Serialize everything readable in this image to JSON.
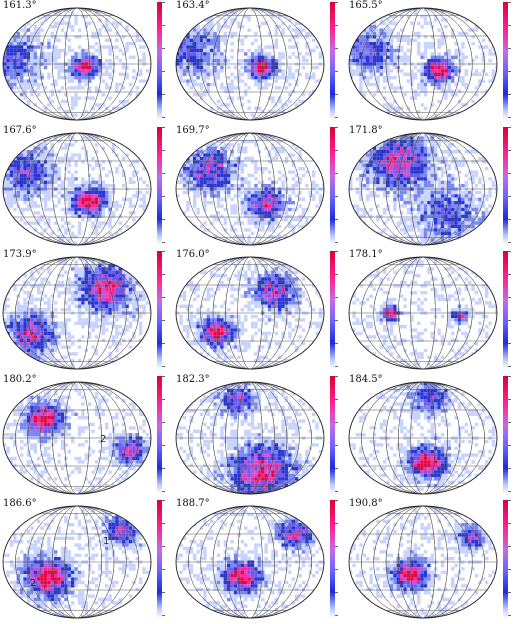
{
  "panels": [
    {
      "label": "161.3°",
      "blobs": [
        {
          "lon": 20,
          "lat": -5,
          "r": 0.13,
          "peak": 1.0
        },
        {
          "lon": -160,
          "lat": 10,
          "r": 0.3,
          "peak": 0.5
        }
      ]
    },
    {
      "label": "163.4°",
      "blobs": [
        {
          "lon": 30,
          "lat": -5,
          "r": 0.13,
          "peak": 1.0
        },
        {
          "lon": -140,
          "lat": 20,
          "r": 0.28,
          "peak": 0.5
        }
      ]
    },
    {
      "label": "165.5°",
      "blobs": [
        {
          "lon": 40,
          "lat": -10,
          "r": 0.14,
          "peak": 1.0
        },
        {
          "lon": -130,
          "lat": 20,
          "r": 0.26,
          "peak": 0.5
        }
      ]
    },
    {
      "label": "167.6°",
      "blobs": [
        {
          "lon": 30,
          "lat": -20,
          "r": 0.16,
          "peak": 1.0
        },
        {
          "lon": -120,
          "lat": 25,
          "r": 0.26,
          "peak": 0.6
        }
      ]
    },
    {
      "label": "169.7°",
      "blobs": [
        {
          "lon": 40,
          "lat": -25,
          "r": 0.18,
          "peak": 0.8
        },
        {
          "lon": -100,
          "lat": 30,
          "r": 0.24,
          "peak": 0.7
        }
      ]
    },
    {
      "label": "171.8°",
      "blobs": [
        {
          "lon": -60,
          "lat": 45,
          "r": 0.3,
          "peak": 0.8
        },
        {
          "lon": 60,
          "lat": -40,
          "r": 0.3,
          "peak": 0.5
        }
      ]
    },
    {
      "label": "173.9°",
      "blobs": [
        {
          "lon": 70,
          "lat": 40,
          "r": 0.25,
          "peak": 0.9
        },
        {
          "lon": -110,
          "lat": -35,
          "r": 0.22,
          "peak": 0.8
        }
      ]
    },
    {
      "label": "176.0°",
      "blobs": [
        {
          "lon": 60,
          "lat": 35,
          "r": 0.2,
          "peak": 0.8
        },
        {
          "lon": -80,
          "lat": -30,
          "r": 0.16,
          "peak": 1.0
        }
      ]
    },
    {
      "label": "178.1°",
      "blobs": [
        {
          "lon": -80,
          "lat": 0,
          "r": 0.08,
          "peak": 1.0
        },
        {
          "lon": 90,
          "lat": -5,
          "r": 0.07,
          "peak": 0.9
        }
      ]
    },
    {
      "label": "180.2°",
      "blobs": [
        {
          "lon": -80,
          "lat": 30,
          "r": 0.18,
          "peak": 1.0
        },
        {
          "lon": 130,
          "lat": -20,
          "r": 0.15,
          "peak": 0.8
        }
      ]
    },
    {
      "label": "182.3°",
      "blobs": [
        {
          "lon": 30,
          "lat": -55,
          "r": 0.3,
          "peak": 0.9
        },
        {
          "lon": -30,
          "lat": 60,
          "r": 0.16,
          "peak": 0.7
        }
      ]
    },
    {
      "label": "184.5°",
      "blobs": [
        {
          "lon": 10,
          "lat": -40,
          "r": 0.18,
          "peak": 1.0
        },
        {
          "lon": 20,
          "lat": 65,
          "r": 0.18,
          "peak": 0.6
        }
      ]
    },
    {
      "label": "186.6°",
      "blobs": [
        {
          "lon": -70,
          "lat": -25,
          "r": 0.22,
          "peak": 1.0
        },
        {
          "lon": 110,
          "lat": 50,
          "r": 0.16,
          "peak": 0.7
        }
      ]
    },
    {
      "label": "188.7°",
      "blobs": [
        {
          "lon": -20,
          "lat": -25,
          "r": 0.18,
          "peak": 1.0
        },
        {
          "lon": 110,
          "lat": 45,
          "r": 0.16,
          "peak": 0.8
        }
      ]
    },
    {
      "label": "190.8°",
      "blobs": [
        {
          "lon": -30,
          "lat": -20,
          "r": 0.17,
          "peak": 1.0
        },
        {
          "lon": 120,
          "lat": 40,
          "r": 0.14,
          "peak": 0.7
        }
      ]
    }
  ],
  "markers": [
    {
      "panel": 9,
      "text": "2"
    },
    {
      "panel": 12,
      "text": "1"
    },
    {
      "panel": 12,
      "text": "2"
    }
  ],
  "colors": {
    "grid": "#555555",
    "outline": "#222222",
    "high": "#ff1f8f",
    "peak": "#d9003a",
    "mid": "#6a63ff",
    "low": "#1c2bd8",
    "bg": "#ffffff"
  }
}
